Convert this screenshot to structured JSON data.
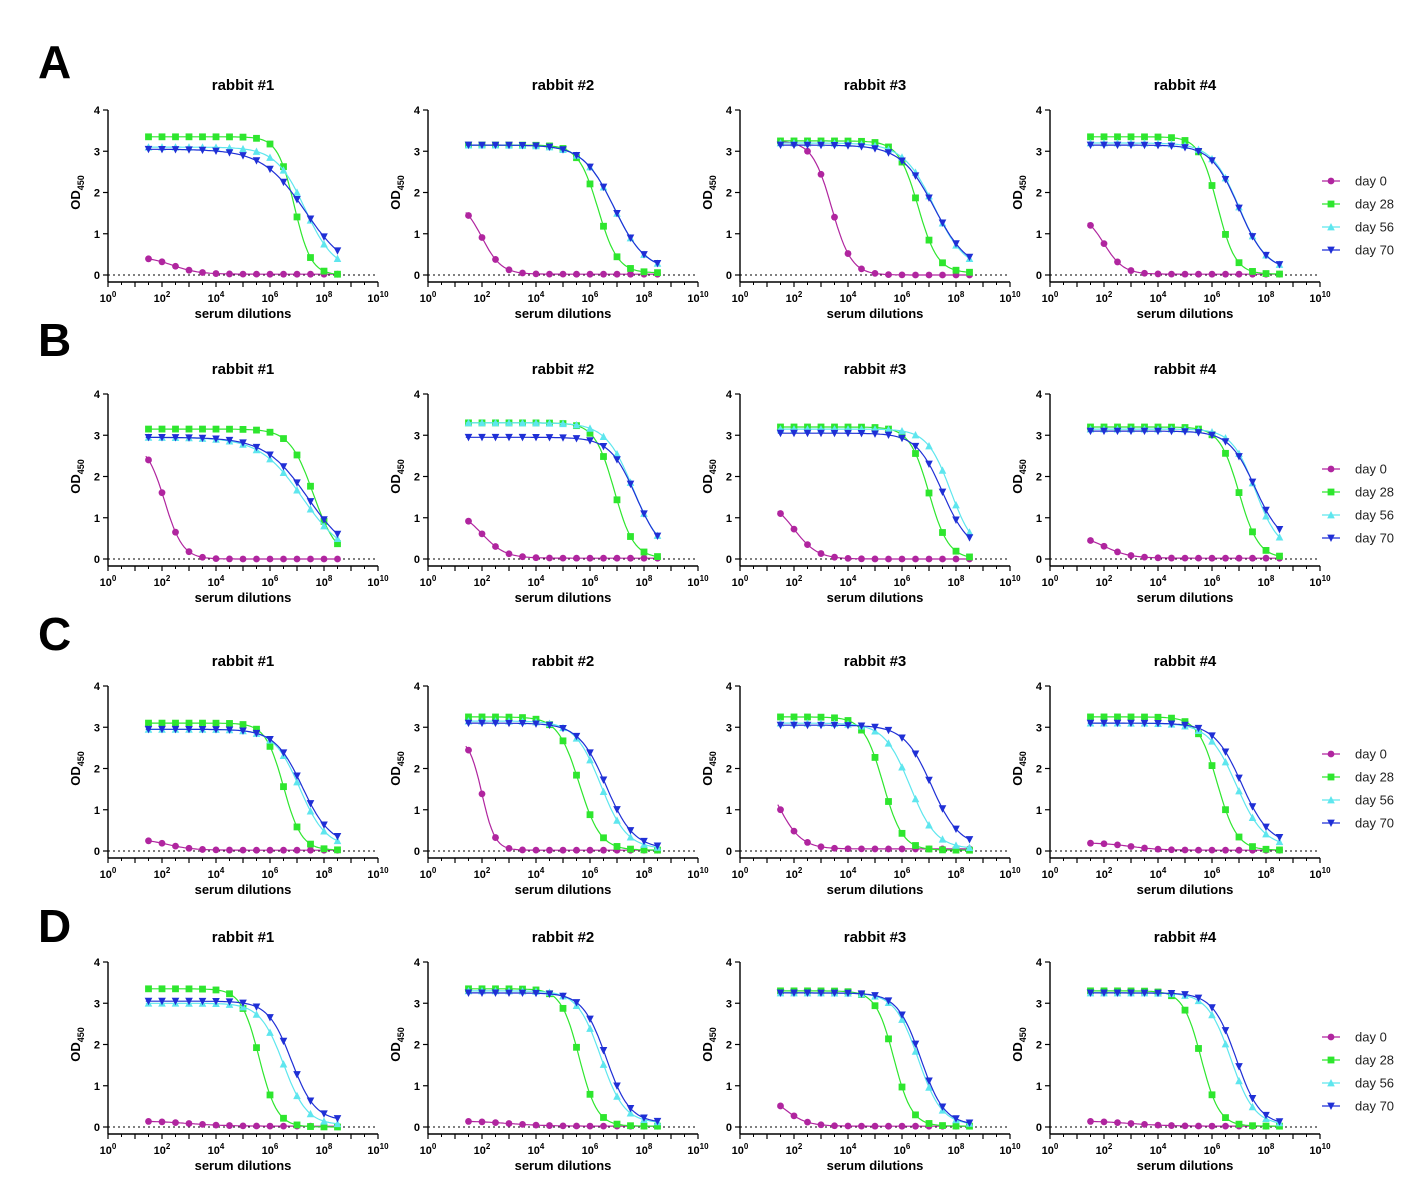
{
  "figure": {
    "legend": {
      "day0": "day 0",
      "day28": "day 28",
      "day56": "day 56",
      "day70": "day 70"
    },
    "colors": {
      "day0": "#b0259f",
      "day28": "#2ee62e",
      "day56": "#5ee6ee",
      "day70": "#1f2fd6"
    },
    "y_axis_label": "OD",
    "y_axis_subscript": "450",
    "x_axis_label": "serum dilutions",
    "y_ticks": [
      "0",
      "1",
      "2",
      "3",
      "4"
    ],
    "x_tick_exponents": [
      "0",
      "2",
      "4",
      "6",
      "8",
      "10"
    ],
    "x_tick_base": "10"
  },
  "chart_data": [
    {
      "type": "scatter",
      "panel": "A",
      "title": "rabbit #1",
      "xlabel": "serum dilutions",
      "ylabel": "OD450",
      "xscale": "log",
      "xlim": [
        1,
        10000000000
      ],
      "ylim": [
        0,
        4
      ],
      "baseline": 0,
      "series": [
        {
          "name": "day 0",
          "top": 0.45,
          "bottom": 0.02,
          "log_ec50": 2.4,
          "hill": 0.9
        },
        {
          "name": "day 28",
          "top": 3.35,
          "bottom": 0.0,
          "log_ec50": 6.9,
          "hill": 1.4
        },
        {
          "name": "day 56",
          "top": 3.1,
          "bottom": 0.1,
          "log_ec50": 7.3,
          "hill": 0.8
        },
        {
          "name": "day 70",
          "top": 3.05,
          "bottom": 0.05,
          "log_ec50": 7.3,
          "hill": 0.55
        }
      ]
    },
    {
      "type": "scatter",
      "panel": "A",
      "title": "rabbit #2",
      "xlabel": "serum dilutions",
      "ylabel": "OD450",
      "xscale": "log",
      "xlim": [
        1,
        10000000000
      ],
      "ylim": [
        0,
        4
      ],
      "baseline": 0,
      "series": [
        {
          "name": "day 0",
          "top": 1.8,
          "bottom": 0.02,
          "log_ec50": 2.0,
          "hill": 1.2
        },
        {
          "name": "day 28",
          "top": 3.15,
          "bottom": 0.05,
          "log_ec50": 6.3,
          "hill": 1.2
        },
        {
          "name": "day 56",
          "top": 3.15,
          "bottom": 0.1,
          "log_ec50": 6.9,
          "hill": 0.75
        },
        {
          "name": "day 70",
          "top": 3.15,
          "bottom": 0.1,
          "log_ec50": 6.9,
          "hill": 0.75
        }
      ]
    },
    {
      "type": "scatter",
      "panel": "A",
      "title": "rabbit #3",
      "xlabel": "serum dilutions",
      "ylabel": "OD450",
      "xscale": "log",
      "xlim": [
        1,
        10000000000
      ],
      "ylim": [
        0,
        4
      ],
      "baseline": 0,
      "series": [
        {
          "name": "day 0",
          "top": 3.25,
          "bottom": 0.0,
          "log_ec50": 3.4,
          "hill": 1.2
        },
        {
          "name": "day 28",
          "top": 3.25,
          "bottom": 0.05,
          "log_ec50": 6.6,
          "hill": 1.2
        },
        {
          "name": "day 56",
          "top": 3.2,
          "bottom": 0.1,
          "log_ec50": 7.2,
          "hill": 0.75
        },
        {
          "name": "day 70",
          "top": 3.15,
          "bottom": 0.1,
          "log_ec50": 7.2,
          "hill": 0.7
        }
      ]
    },
    {
      "type": "scatter",
      "panel": "A",
      "title": "rabbit #4",
      "xlabel": "serum dilutions",
      "ylabel": "OD450",
      "xscale": "log",
      "xlim": [
        1,
        10000000000
      ],
      "ylim": [
        0,
        4
      ],
      "baseline": 0,
      "series": [
        {
          "name": "day 0",
          "top": 1.5,
          "bottom": 0.02,
          "log_ec50": 2.0,
          "hill": 1.2
        },
        {
          "name": "day 28",
          "top": 3.35,
          "bottom": 0.02,
          "log_ec50": 6.2,
          "hill": 1.3
        },
        {
          "name": "day 56",
          "top": 3.2,
          "bottom": 0.1,
          "log_ec50": 7.0,
          "hill": 0.85
        },
        {
          "name": "day 70",
          "top": 3.15,
          "bottom": 0.1,
          "log_ec50": 7.0,
          "hill": 0.85
        }
      ]
    },
    {
      "type": "scatter",
      "panel": "B",
      "title": "rabbit #1",
      "xlabel": "serum dilutions",
      "ylabel": "OD450",
      "xscale": "log",
      "xlim": [
        1,
        10000000000
      ],
      "ylim": [
        0,
        4
      ],
      "baseline": 0,
      "series": [
        {
          "name": "day 0",
          "top": 2.8,
          "bottom": 0.0,
          "log_ec50": 2.1,
          "hill": 1.3
        },
        {
          "name": "day 28",
          "top": 3.15,
          "bottom": 0.02,
          "log_ec50": 7.6,
          "hill": 1.0
        },
        {
          "name": "day 56",
          "top": 2.95,
          "bottom": 0.02,
          "log_ec50": 7.2,
          "hill": 0.55
        },
        {
          "name": "day 70",
          "top": 2.95,
          "bottom": 0.02,
          "log_ec50": 7.4,
          "hill": 0.55
        }
      ]
    },
    {
      "type": "scatter",
      "panel": "B",
      "title": "rabbit #2",
      "xlabel": "serum dilutions",
      "ylabel": "OD450",
      "xscale": "log",
      "xlim": [
        1,
        10000000000
      ],
      "ylim": [
        0,
        4
      ],
      "baseline": 0,
      "series": [
        {
          "name": "day 0",
          "top": 1.2,
          "bottom": 0.02,
          "log_ec50": 2.0,
          "hill": 1.0
        },
        {
          "name": "day 28",
          "top": 3.3,
          "bottom": 0.02,
          "log_ec50": 6.9,
          "hill": 1.2
        },
        {
          "name": "day 56",
          "top": 3.3,
          "bottom": 0.1,
          "log_ec50": 7.6,
          "hill": 0.85
        },
        {
          "name": "day 70",
          "top": 2.95,
          "bottom": 0.1,
          "log_ec50": 7.7,
          "hill": 0.9
        }
      ]
    },
    {
      "type": "scatter",
      "panel": "B",
      "title": "rabbit #3",
      "xlabel": "serum dilutions",
      "ylabel": "OD450",
      "xscale": "log",
      "xlim": [
        1,
        10000000000
      ],
      "ylim": [
        0,
        4
      ],
      "baseline": 0,
      "series": [
        {
          "name": "day 0",
          "top": 1.45,
          "bottom": 0.0,
          "log_ec50": 2.0,
          "hill": 1.0
        },
        {
          "name": "day 28",
          "top": 3.2,
          "bottom": 0.0,
          "log_ec50": 7.0,
          "hill": 1.2
        },
        {
          "name": "day 56",
          "top": 3.15,
          "bottom": 0.15,
          "log_ec50": 7.8,
          "hill": 1.0
        },
        {
          "name": "day 70",
          "top": 3.05,
          "bottom": 0.2,
          "log_ec50": 7.5,
          "hill": 0.9
        }
      ]
    },
    {
      "type": "scatter",
      "panel": "B",
      "title": "rabbit #4",
      "xlabel": "serum dilutions",
      "ylabel": "OD450",
      "xscale": "log",
      "xlim": [
        1,
        10000000000
      ],
      "ylim": [
        0,
        4
      ],
      "baseline": 0,
      "series": [
        {
          "name": "day 0",
          "top": 0.6,
          "bottom": 0.02,
          "log_ec50": 2.0,
          "hill": 0.9
        },
        {
          "name": "day 28",
          "top": 3.2,
          "bottom": 0.02,
          "log_ec50": 7.0,
          "hill": 1.2
        },
        {
          "name": "day 56",
          "top": 3.15,
          "bottom": 0.2,
          "log_ec50": 7.6,
          "hill": 1.0
        },
        {
          "name": "day 70",
          "top": 3.1,
          "bottom": 0.35,
          "log_ec50": 7.6,
          "hill": 0.9
        }
      ]
    },
    {
      "type": "scatter",
      "panel": "C",
      "title": "rabbit #1",
      "xlabel": "serum dilutions",
      "ylabel": "OD450",
      "xscale": "log",
      "xlim": [
        1,
        10000000000
      ],
      "ylim": [
        0,
        4
      ],
      "baseline": 0,
      "series": [
        {
          "name": "day 0",
          "top": 0.3,
          "bottom": 0.02,
          "log_ec50": 2.2,
          "hill": 0.9
        },
        {
          "name": "day 28",
          "top": 3.1,
          "bottom": 0.02,
          "log_ec50": 6.5,
          "hill": 1.3
        },
        {
          "name": "day 56",
          "top": 2.95,
          "bottom": 0.1,
          "log_ec50": 7.1,
          "hill": 0.9
        },
        {
          "name": "day 70",
          "top": 2.95,
          "bottom": 0.15,
          "log_ec50": 7.2,
          "hill": 0.85
        }
      ]
    },
    {
      "type": "scatter",
      "panel": "C",
      "title": "rabbit #2",
      "xlabel": "serum dilutions",
      "ylabel": "OD450",
      "xscale": "log",
      "xlim": [
        1,
        10000000000
      ],
      "ylim": [
        0,
        4
      ],
      "baseline": 0,
      "series": [
        {
          "name": "day 0",
          "top": 2.75,
          "bottom": 0.02,
          "log_ec50": 2.0,
          "hill": 1.8
        },
        {
          "name": "day 28",
          "top": 3.25,
          "bottom": 0.02,
          "log_ec50": 5.6,
          "hill": 1.1
        },
        {
          "name": "day 56",
          "top": 3.15,
          "bottom": 0.05,
          "log_ec50": 6.4,
          "hill": 0.9
        },
        {
          "name": "day 70",
          "top": 3.1,
          "bottom": 0.05,
          "log_ec50": 6.6,
          "hill": 0.85
        }
      ]
    },
    {
      "type": "scatter",
      "panel": "C",
      "title": "rabbit #3",
      "xlabel": "serum dilutions",
      "ylabel": "OD450",
      "xscale": "log",
      "xlim": [
        1,
        10000000000
      ],
      "ylim": [
        0,
        4
      ],
      "baseline": 0,
      "series": [
        {
          "name": "day 0",
          "top": 2.2,
          "bottom": 0.05,
          "log_ec50": 1.4,
          "hill": 1.0
        },
        {
          "name": "day 28",
          "top": 3.25,
          "bottom": 0.02,
          "log_ec50": 5.3,
          "hill": 1.2
        },
        {
          "name": "day 56",
          "top": 3.1,
          "bottom": 0.05,
          "log_ec50": 6.3,
          "hill": 0.9
        },
        {
          "name": "day 70",
          "top": 3.05,
          "bottom": 0.1,
          "log_ec50": 7.1,
          "hill": 0.85
        }
      ]
    },
    {
      "type": "scatter",
      "panel": "C",
      "title": "rabbit #4",
      "xlabel": "serum dilutions",
      "ylabel": "OD450",
      "xscale": "log",
      "xlim": [
        1,
        10000000000
      ],
      "ylim": [
        0,
        4
      ],
      "baseline": 0,
      "series": [
        {
          "name": "day 0",
          "top": 0.2,
          "bottom": 0.02,
          "log_ec50": 3.0,
          "hill": 0.8
        },
        {
          "name": "day 28",
          "top": 3.25,
          "bottom": 0.02,
          "log_ec50": 6.2,
          "hill": 1.2
        },
        {
          "name": "day 56",
          "top": 3.1,
          "bottom": 0.1,
          "log_ec50": 6.9,
          "hill": 0.85
        },
        {
          "name": "day 70",
          "top": 3.1,
          "bottom": 0.15,
          "log_ec50": 7.1,
          "hill": 0.85
        }
      ]
    },
    {
      "type": "scatter",
      "panel": "D",
      "title": "rabbit #1",
      "xlabel": "serum dilutions",
      "ylabel": "OD450",
      "xscale": "log",
      "xlim": [
        1,
        10000000000
      ],
      "ylim": [
        0,
        4
      ],
      "baseline": 0,
      "series": [
        {
          "name": "day 0",
          "top": 0.15,
          "bottom": 0.02,
          "log_ec50": 3.0,
          "hill": 0.6
        },
        {
          "name": "day 28",
          "top": 3.35,
          "bottom": 0.0,
          "log_ec50": 5.6,
          "hill": 1.3
        },
        {
          "name": "day 56",
          "top": 3.0,
          "bottom": 0.05,
          "log_ec50": 6.5,
          "hill": 1.0
        },
        {
          "name": "day 70",
          "top": 3.05,
          "bottom": 0.15,
          "log_ec50": 6.8,
          "hill": 1.0
        }
      ]
    },
    {
      "type": "scatter",
      "panel": "D",
      "title": "rabbit #2",
      "xlabel": "serum dilutions",
      "ylabel": "OD450",
      "xscale": "log",
      "xlim": [
        1,
        10000000000
      ],
      "ylim": [
        0,
        4
      ],
      "baseline": 0,
      "series": [
        {
          "name": "day 0",
          "top": 0.15,
          "bottom": 0.02,
          "log_ec50": 3.0,
          "hill": 0.6
        },
        {
          "name": "day 28",
          "top": 3.35,
          "bottom": 0.02,
          "log_ec50": 5.6,
          "hill": 1.3
        },
        {
          "name": "day 56",
          "top": 3.3,
          "bottom": 0.1,
          "log_ec50": 6.4,
          "hill": 1.0
        },
        {
          "name": "day 70",
          "top": 3.25,
          "bottom": 0.1,
          "log_ec50": 6.6,
          "hill": 1.0
        }
      ]
    },
    {
      "type": "scatter",
      "panel": "D",
      "title": "rabbit #3",
      "xlabel": "serum dilutions",
      "ylabel": "OD450",
      "xscale": "log",
      "xlim": [
        1,
        10000000000
      ],
      "ylim": [
        0,
        4
      ],
      "baseline": 0,
      "series": [
        {
          "name": "day 0",
          "top": 0.9,
          "bottom": 0.02,
          "log_ec50": 1.6,
          "hill": 1.0
        },
        {
          "name": "day 28",
          "top": 3.3,
          "bottom": 0.02,
          "log_ec50": 5.7,
          "hill": 1.3
        },
        {
          "name": "day 56",
          "top": 3.25,
          "bottom": 0.05,
          "log_ec50": 6.6,
          "hill": 1.0
        },
        {
          "name": "day 70",
          "top": 3.25,
          "bottom": 0.05,
          "log_ec50": 6.7,
          "hill": 1.0
        }
      ]
    },
    {
      "type": "scatter",
      "panel": "D",
      "title": "rabbit #4",
      "xlabel": "serum dilutions",
      "ylabel": "OD450",
      "xscale": "log",
      "xlim": [
        1,
        10000000000
      ],
      "ylim": [
        0,
        4
      ],
      "baseline": 0,
      "series": [
        {
          "name": "day 0",
          "top": 0.15,
          "bottom": 0.02,
          "log_ec50": 3.0,
          "hill": 0.6
        },
        {
          "name": "day 28",
          "top": 3.3,
          "bottom": 0.02,
          "log_ec50": 5.6,
          "hill": 1.3
        },
        {
          "name": "day 56",
          "top": 3.25,
          "bottom": 0.05,
          "log_ec50": 6.7,
          "hill": 1.0
        },
        {
          "name": "day 70",
          "top": 3.25,
          "bottom": 0.05,
          "log_ec50": 6.9,
          "hill": 1.0
        }
      ]
    }
  ]
}
